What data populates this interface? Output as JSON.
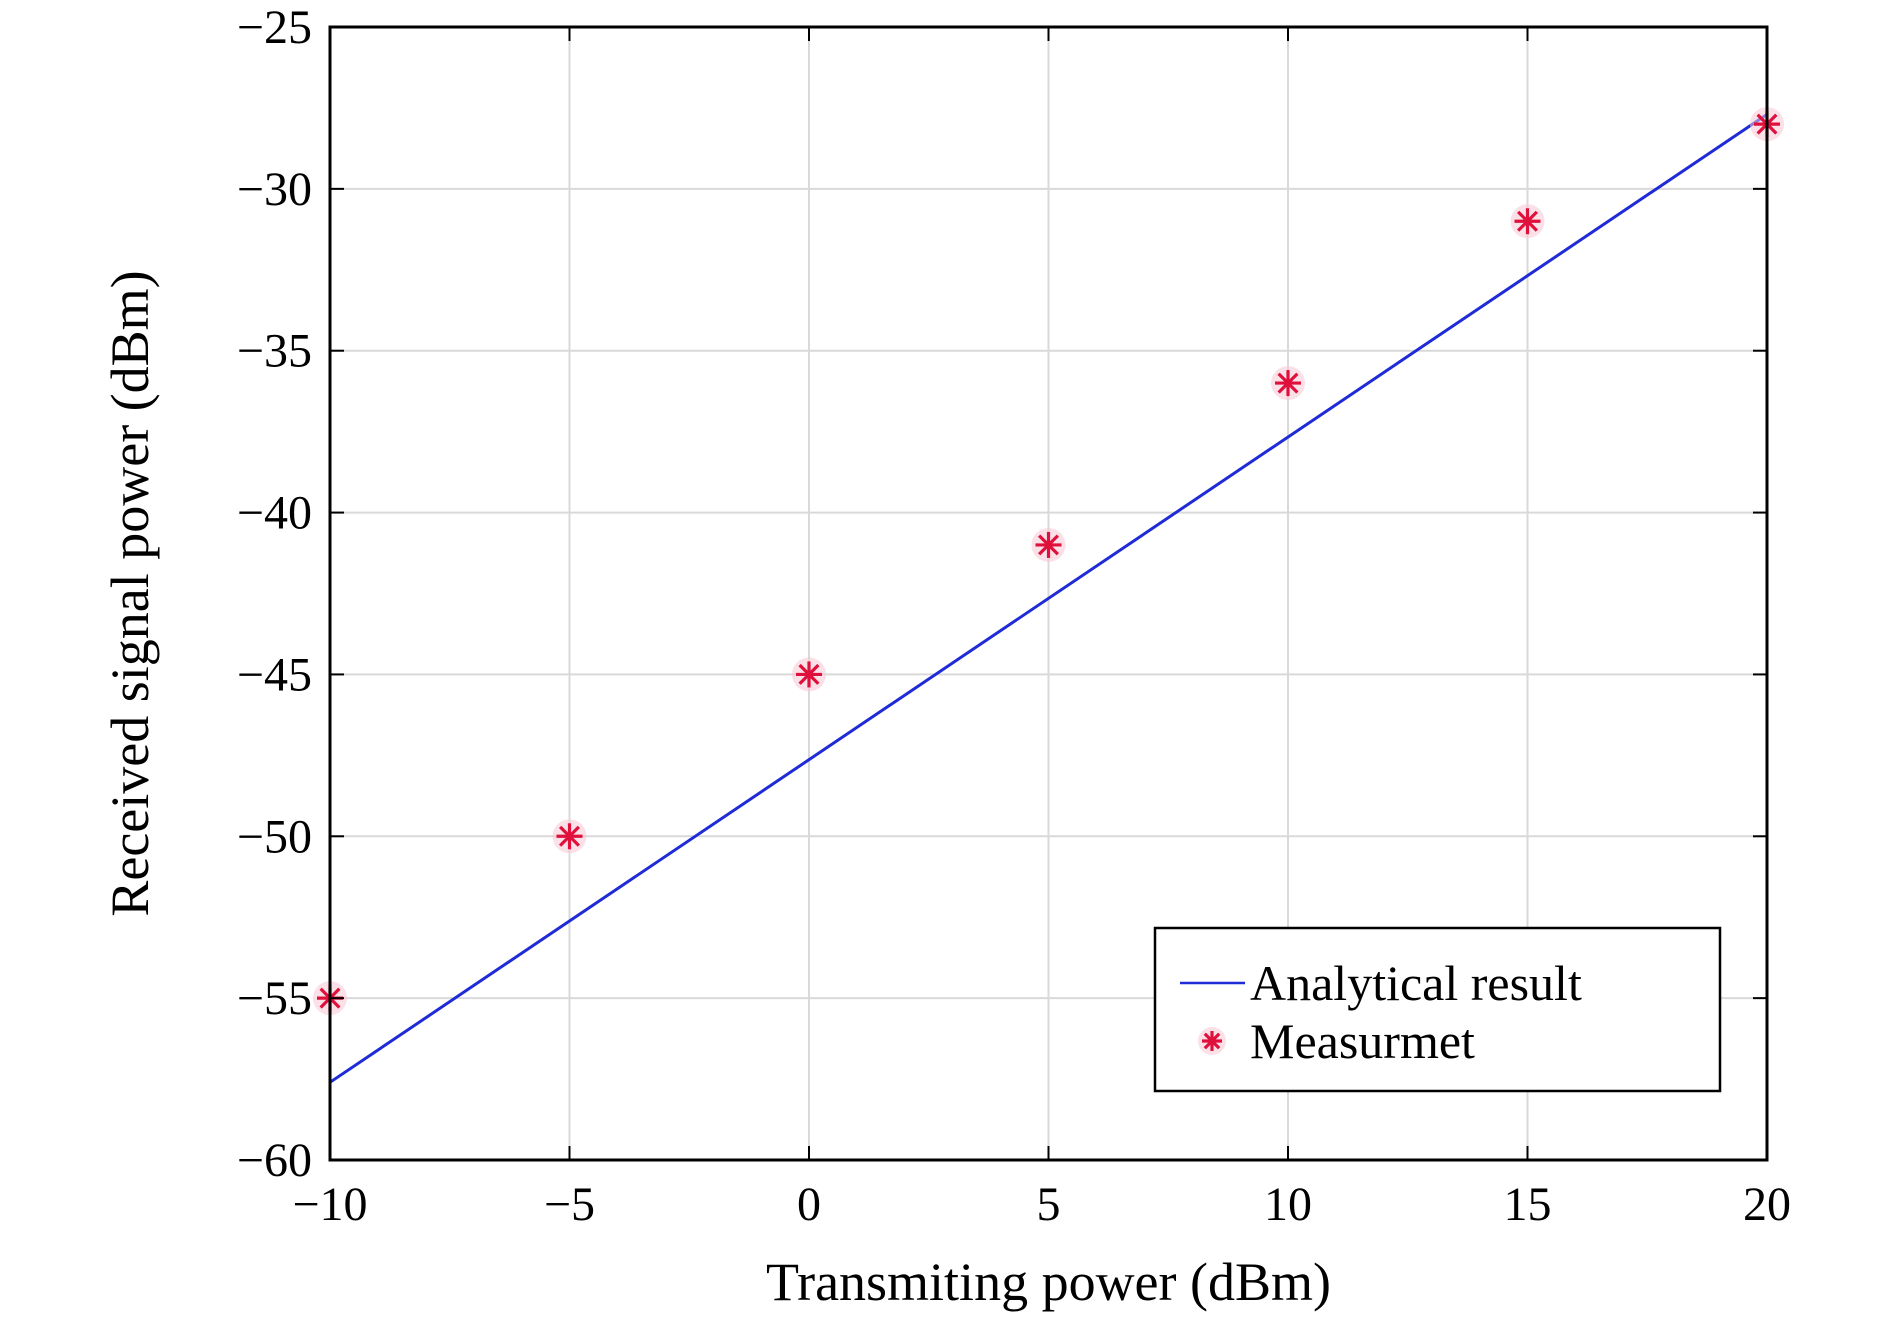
{
  "chart_data": {
    "type": "line",
    "title": "",
    "xlabel": "Transmiting power (dBm)",
    "ylabel": "Received signal power (dBm)",
    "xlim": [
      -10,
      20
    ],
    "ylim": [
      -60,
      -25
    ],
    "x_ticks": [
      -10,
      -5,
      0,
      5,
      10,
      15,
      20
    ],
    "y_ticks": [
      -25,
      -30,
      -35,
      -40,
      -45,
      -50,
      -55,
      -60
    ],
    "x_tick_labels": [
      "−10",
      "−5",
      "0",
      "5",
      "10",
      "15",
      "20"
    ],
    "y_tick_labels": [
      "−25",
      "−30",
      "−35",
      "−40",
      "−45",
      "−50",
      "−55",
      "−60"
    ],
    "grid": true,
    "legend_position": "bottom-right",
    "series": [
      {
        "name": "Analytical result",
        "kind": "line",
        "color": "#1f2bd6",
        "x": [
          -10,
          20
        ],
        "y": [
          -57.6,
          -27.7
        ]
      },
      {
        "name": "Measurmet",
        "kind": "scatter",
        "marker": "asterisk",
        "color": "#e0103c",
        "x": [
          -10,
          -5,
          0,
          5,
          10,
          15,
          20
        ],
        "y": [
          -55,
          -50,
          -45,
          -41,
          -36,
          -31,
          -28
        ]
      }
    ]
  }
}
